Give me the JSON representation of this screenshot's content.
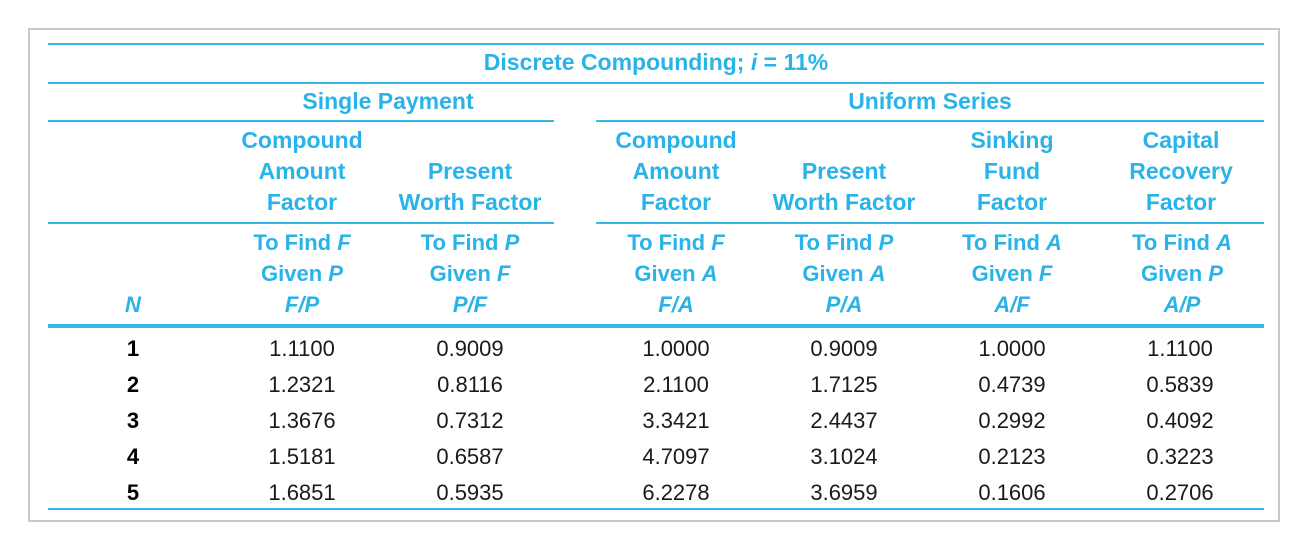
{
  "title_prefix": "Discrete Compounding; ",
  "title_var": "i",
  "title_suffix": " = 11%",
  "groups": {
    "single": "Single Payment",
    "uniform": "Uniform Series"
  },
  "column_heads": [
    [
      "Compound",
      "Amount",
      "Factor"
    ],
    [
      "Present",
      "Worth Factor"
    ],
    [
      "Compound",
      "Amount",
      "Factor"
    ],
    [
      "Present",
      "Worth Factor"
    ],
    [
      "Sinking",
      "Fund",
      "Factor"
    ],
    [
      "Capital",
      "Recovery",
      "Factor"
    ]
  ],
  "find_heads": [
    {
      "find": "F",
      "given": "P",
      "a": "F",
      "b": "P"
    },
    {
      "find": "P",
      "given": "F",
      "a": "P",
      "b": "F"
    },
    {
      "find": "F",
      "given": "A",
      "a": "F",
      "b": "A"
    },
    {
      "find": "P",
      "given": "A",
      "a": "P",
      "b": "A"
    },
    {
      "find": "A",
      "given": "F",
      "a": "A",
      "b": "F"
    },
    {
      "find": "A",
      "given": "P",
      "a": "A",
      "b": "P"
    }
  ],
  "to_find_label": "To Find ",
  "given_label": "Given ",
  "slash": "/",
  "n_label": "N",
  "rows": [
    {
      "n": "1",
      "v": [
        "1.1100",
        "0.9009",
        "1.0000",
        "0.9009",
        "1.0000",
        "1.1100"
      ]
    },
    {
      "n": "2",
      "v": [
        "1.2321",
        "0.8116",
        "2.1100",
        "1.7125",
        "0.4739",
        "0.5839"
      ]
    },
    {
      "n": "3",
      "v": [
        "1.3676",
        "0.7312",
        "3.3421",
        "2.4437",
        "0.2992",
        "0.4092"
      ]
    },
    {
      "n": "4",
      "v": [
        "1.5181",
        "0.6587",
        "4.7097",
        "3.1024",
        "0.2123",
        "0.3223"
      ]
    },
    {
      "n": "5",
      "v": [
        "1.6851",
        "0.5935",
        "6.2278",
        "3.6959",
        "0.1606",
        "0.2706"
      ]
    }
  ],
  "accent_color": "#29b3e8",
  "rule_color": "#35b8e6"
}
